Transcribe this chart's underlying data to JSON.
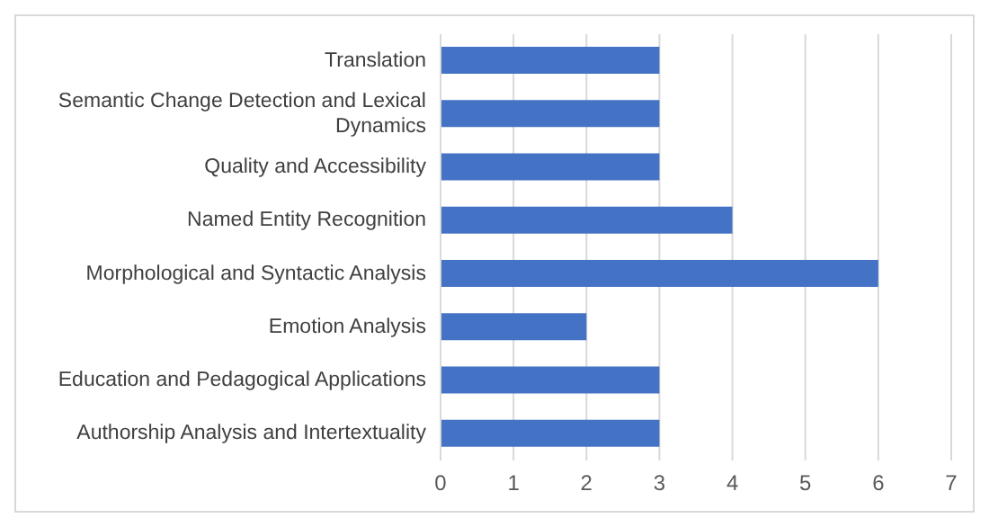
{
  "chart_data": {
    "type": "bar",
    "orientation": "horizontal",
    "categories": [
      "Translation",
      "Semantic Change Detection and Lexical Dynamics",
      "Quality and Accessibility",
      "Named Entity Recognition",
      "Morphological and Syntactic Analysis",
      "Emotion Analysis",
      "Education and Pedagogical Applications",
      "Authorship Analysis and Intertextuality"
    ],
    "values": [
      3,
      3,
      3,
      4,
      6,
      2,
      3,
      3
    ],
    "color": "#4472c4",
    "xlim": [
      0,
      7
    ],
    "xticks": [
      0,
      1,
      2,
      3,
      4,
      5,
      6,
      7
    ],
    "grid": "x"
  }
}
